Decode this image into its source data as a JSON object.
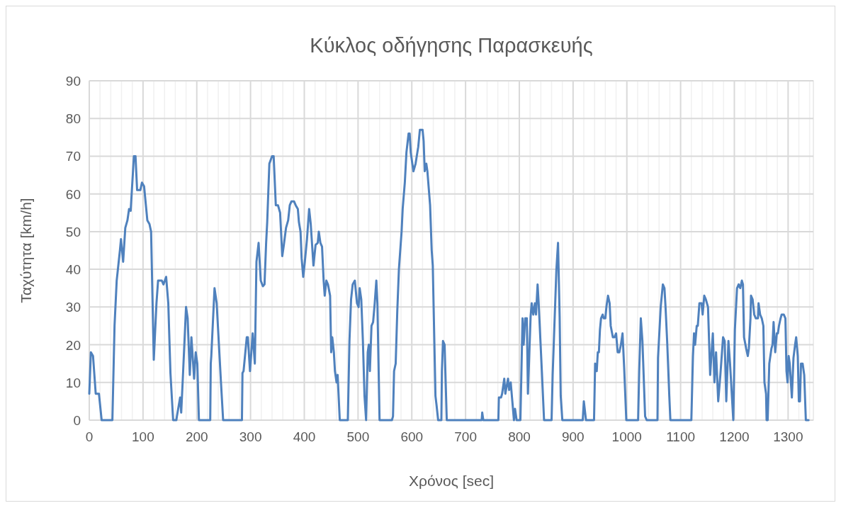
{
  "chart_data": {
    "type": "line",
    "title": "Κύκλος οδήγησης Παρασκευής",
    "xlabel": "Χρόνος [sec]",
    "ylabel": "Ταχύτητα [km/h]",
    "xlim": [
      0,
      1347
    ],
    "ylim": [
      0,
      90
    ],
    "xticks": [
      0,
      {
        "value": 20,
        "label": null
      },
      {
        "value": 40,
        "label": null
      },
      {
        "value": 60,
        "label": null
      },
      {
        "value": 80,
        "label": null
      },
      100,
      {
        "value": 120,
        "label": null
      },
      {
        "value": 140,
        "label": null
      },
      {
        "value": 160,
        "label": null
      },
      {
        "value": 180,
        "label": null
      },
      200,
      {
        "value": 220,
        "label": null
      },
      {
        "value": 240,
        "label": null
      },
      {
        "value": 260,
        "label": null
      },
      {
        "value": 280,
        "label": null
      },
      300,
      {
        "value": 320,
        "label": null
      },
      {
        "value": 340,
        "label": null
      },
      {
        "value": 360,
        "label": null
      },
      {
        "value": 380,
        "label": null
      },
      400,
      {
        "value": 420,
        "label": null
      },
      {
        "value": 440,
        "label": null
      },
      {
        "value": 460,
        "label": null
      },
      {
        "value": 480,
        "label": null
      },
      500,
      {
        "value": 520,
        "label": null
      },
      {
        "value": 540,
        "label": null
      },
      {
        "value": 560,
        "label": null
      },
      {
        "value": 580,
        "label": null
      },
      600,
      {
        "value": 620,
        "label": null
      },
      {
        "value": 640,
        "label": null
      },
      {
        "value": 660,
        "label": null
      },
      {
        "value": 680,
        "label": null
      },
      700,
      {
        "value": 720,
        "label": null
      },
      {
        "value": 740,
        "label": null
      },
      {
        "value": 760,
        "label": null
      },
      {
        "value": 780,
        "label": null
      },
      800,
      {
        "value": 820,
        "label": null
      },
      {
        "value": 840,
        "label": null
      },
      {
        "value": 860,
        "label": null
      },
      {
        "value": 880,
        "label": null
      },
      900,
      {
        "value": 920,
        "label": null
      },
      {
        "value": 940,
        "label": null
      },
      {
        "value": 960,
        "label": null
      },
      {
        "value": 980,
        "label": null
      },
      1000,
      {
        "value": 1020,
        "label": null
      },
      {
        "value": 1040,
        "label": null
      },
      {
        "value": 1060,
        "label": null
      },
      {
        "value": 1080,
        "label": null
      },
      1100,
      {
        "value": 1120,
        "label": null
      },
      {
        "value": 1140,
        "label": null
      },
      {
        "value": 1160,
        "label": null
      },
      {
        "value": 1180,
        "label": null
      },
      1200,
      {
        "value": 1220,
        "label": null
      },
      {
        "value": 1240,
        "label": null
      },
      {
        "value": 1260,
        "label": null
      },
      {
        "value": 1280,
        "label": null
      },
      1300,
      {
        "value": 1320,
        "label": null
      },
      {
        "value": 1340,
        "label": null
      }
    ],
    "yticks": [
      0,
      10,
      20,
      30,
      40,
      50,
      60,
      70,
      80,
      90
    ],
    "grid": true,
    "marker": "none",
    "line_style": "solid",
    "series": [
      {
        "color": "#4f81bd",
        "x": [
          0,
          3,
          7,
          12,
          18,
          23,
          43,
          47,
          51,
          57,
          59,
          63,
          67,
          71,
          74,
          77,
          83,
          86,
          89,
          95,
          98,
          102,
          108,
          112,
          115,
          120,
          125,
          128,
          135,
          138,
          143,
          147,
          151,
          156,
          162,
          163,
          169,
          171,
          174,
          180,
          183,
          187,
          190,
          195,
          198,
          201,
          204,
          225,
          226,
          227,
          233,
          237,
          245,
          249,
          284,
          285,
          287,
          293,
          295,
          299,
          304,
          308,
          311,
          315,
          319,
          323,
          326,
          329,
          331,
          335,
          340,
          343,
          347,
          351,
          355,
          359,
          362,
          366,
          370,
          373,
          376,
          381,
          384,
          388,
          390,
          393,
          395,
          398,
          401,
          405,
          409,
          412,
          417,
          421,
          425,
          427,
          430,
          433,
          436,
          438,
          441,
          444,
          448,
          450,
          452,
          455,
          457,
          460,
          462,
          466,
          481,
          484,
          487,
          490,
          494,
          498,
          501,
          503,
          506,
          509,
          512,
          515,
          518,
          520,
          522,
          525,
          528,
          531,
          534,
          536,
          540,
          563,
          565,
          567,
          570,
          573,
          576,
          581,
          583,
          587,
          590,
          594,
          596,
          598,
          603,
          607,
          612,
          615,
          620,
          622,
          624,
          627,
          629,
          634,
          637,
          639,
          644,
          646,
          649,
          655,
          656,
          658,
          661,
          665,
          730,
          731,
          733,
          761,
          762,
          766,
          768,
          772,
          774,
          779,
          781,
          784,
          787,
          790,
          792,
          795,
          802,
          806,
          808,
          811,
          814,
          816,
          821,
          823,
          826,
          829,
          831,
          834,
          836,
          842,
          846,
          860,
          862,
          865,
          869,
          872,
          875,
          877,
          880,
          918,
          920,
          924,
          939,
          941,
          944,
          946,
          948,
          950,
          952,
          955,
          957,
          960,
          962,
          965,
          968,
          970,
          974,
          977,
          980,
          983,
          986,
          989,
          992,
          995,
          999,
          1021,
          1023,
          1026,
          1029,
          1034,
          1037,
          1057,
          1058,
          1063,
          1067,
          1070,
          1072,
          1075,
          1079,
          1081,
          1120,
          1123,
          1125,
          1127,
          1130,
          1132,
          1135,
          1139,
          1141,
          1144,
          1147,
          1151,
          1155,
          1160,
          1163,
          1166,
          1170,
          1174,
          1179,
          1182,
          1185,
          1189,
          1192,
          1198,
          1201,
          1205,
          1208,
          1211,
          1214,
          1216,
          1218,
          1222,
          1225,
          1227,
          1230,
          1231,
          1234,
          1237,
          1240,
          1244,
          1245,
          1248,
          1251,
          1254,
          1256,
          1259,
          1260,
          1262,
          1265,
          1269,
          1271,
          1273,
          1276,
          1279,
          1281,
          1283,
          1286,
          1288,
          1292,
          1295,
          1297,
          1299,
          1301,
          1303,
          1307,
          1310,
          1313,
          1315,
          1318,
          1320,
          1322,
          1324,
          1327,
          1330,
          1333,
          1338
        ],
        "values": [
          7,
          18,
          17,
          7,
          7,
          0,
          0,
          25,
          37,
          45,
          48,
          42,
          51,
          53,
          56,
          55.5,
          70,
          70,
          61,
          61,
          63,
          62,
          53,
          52,
          50,
          16,
          31,
          37,
          37,
          36,
          38,
          31,
          12.5,
          0,
          0,
          1,
          6,
          2,
          11,
          30,
          27,
          12,
          22,
          11,
          18,
          15,
          0,
          0,
          15,
          17,
          35,
          31,
          10,
          0,
          0,
          12.5,
          13,
          22,
          22,
          13,
          23,
          15,
          42,
          47,
          37,
          35.5,
          36,
          47,
          52.5,
          68,
          70,
          70,
          57,
          57,
          55,
          43.5,
          46.5,
          51,
          53,
          57,
          58,
          58,
          57,
          56,
          52.5,
          50,
          43,
          38,
          42,
          48,
          56,
          52,
          41,
          46.5,
          47,
          50,
          47,
          46,
          37,
          33,
          37,
          36,
          33,
          18,
          22,
          18,
          13,
          10,
          12,
          0,
          0,
          21,
          32,
          36,
          37,
          31,
          30,
          35,
          32,
          21,
          6.4,
          0,
          18,
          20,
          13,
          25,
          26,
          31,
          37,
          31,
          0,
          0,
          1,
          13,
          15,
          29,
          40,
          50,
          56,
          63,
          71,
          76,
          76,
          71,
          66,
          68,
          72.5,
          77,
          77,
          74,
          66,
          68,
          66,
          57,
          45,
          41,
          6.4,
          4,
          0,
          0,
          13,
          21,
          20,
          0,
          0,
          2,
          0,
          0,
          6,
          6,
          7,
          11,
          7,
          11,
          8,
          10,
          5,
          0,
          3,
          0,
          0,
          27,
          20,
          27,
          27,
          7,
          27.5,
          31,
          28,
          31,
          28,
          36,
          31,
          12.7,
          0,
          0,
          12,
          24,
          40,
          47,
          27.5,
          6.4,
          0,
          0,
          5,
          0,
          0,
          15,
          13,
          18,
          18,
          24,
          27,
          28,
          27,
          27,
          30,
          33,
          31,
          25,
          22,
          22,
          23,
          18,
          18,
          20,
          23,
          14,
          0,
          0,
          13,
          27,
          21,
          1,
          0,
          0,
          16.5,
          30,
          36,
          35,
          30,
          21,
          6.4,
          0,
          0,
          17,
          23,
          20,
          25,
          25,
          31,
          31,
          28,
          33,
          32,
          30,
          12,
          23,
          10,
          18,
          5,
          12,
          22,
          21,
          5,
          21,
          15,
          0,
          24,
          35,
          36,
          35,
          37,
          36,
          22,
          19,
          17,
          19,
          27,
          33,
          32,
          28,
          27,
          27,
          31,
          28,
          27,
          25,
          10,
          7,
          0,
          0,
          15,
          19,
          20,
          26,
          18,
          23,
          23,
          25,
          27,
          28,
          28,
          27,
          13,
          10,
          17,
          15,
          6,
          16.5,
          20,
          22,
          17,
          5,
          5,
          15,
          15,
          12,
          0,
          0
        ]
      }
    ]
  }
}
